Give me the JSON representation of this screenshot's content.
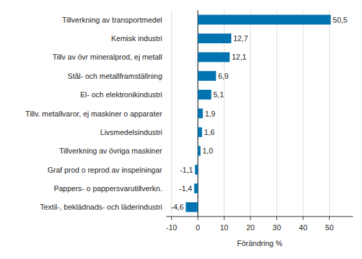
{
  "chart_data": {
    "type": "bar",
    "orientation": "horizontal",
    "x_label": "Förändring %",
    "categories": [
      "Tillverkning av transportmedel",
      "Kemisk industri",
      "Tillv av övr mineralprod, ej metall",
      "Stål- och metallframställning",
      "El- och elektronikindustri",
      "Tillv. metallvaror, ej maskiner o apparater",
      "Livsmedelsindustri",
      "Tillverkning av övriga maskiner",
      "Graf prod o reprod av inspelningar",
      "Pappers- o pappersvarutillverkn.",
      "Textil-, beklädnads- och läderindustri"
    ],
    "values": [
      50.5,
      12.7,
      12.1,
      6.9,
      5.1,
      1.9,
      1.6,
      1.0,
      -1.1,
      -1.4,
      -4.6
    ],
    "value_labels": [
      "50,5",
      "12,7",
      "12,1",
      "6,9",
      "5,1",
      "1,9",
      "1,6",
      "1,0",
      "-1,1",
      "-1,4",
      "-4,6"
    ],
    "data_labels": true,
    "color": "#0073b0",
    "xlim": [
      -12,
      59
    ],
    "xticks": [
      -10,
      0,
      10,
      20,
      30,
      40,
      50
    ],
    "grid": true
  }
}
